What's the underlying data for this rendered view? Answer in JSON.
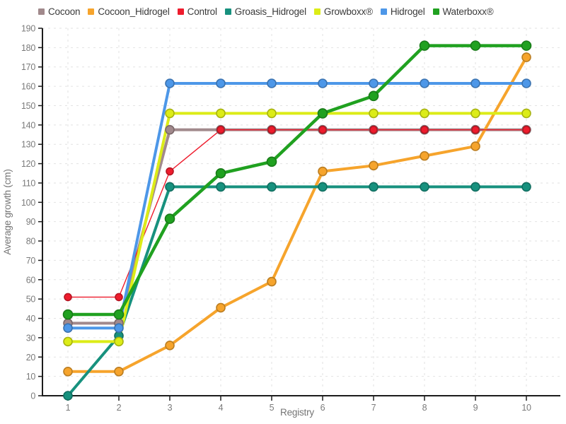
{
  "chart_data": {
    "type": "line",
    "title": "",
    "xlabel": "Registry",
    "ylabel": "Average growth (cm)",
    "x": [
      1,
      2,
      3,
      4,
      5,
      6,
      7,
      8,
      9,
      10
    ],
    "ylim": [
      0,
      190
    ],
    "y_step": 10,
    "y_ticks": [
      0,
      10,
      20,
      30,
      40,
      50,
      60,
      70,
      80,
      90,
      100,
      110,
      120,
      130,
      140,
      150,
      160,
      170,
      180,
      190
    ],
    "grid": true,
    "grid_style": "dashed",
    "legend_position": "top",
    "series": [
      {
        "name": "Cocoon",
        "color": "#a1898c",
        "line_width": 4,
        "marker_radius": 6,
        "values": [
          37.5,
          37.5,
          137.5,
          137.5,
          137.5,
          137.5,
          137.5,
          137.5,
          137.5,
          137.5
        ]
      },
      {
        "name": "Cocoon_Hidrogel",
        "color": "#f6a42c",
        "line_width": 4,
        "marker_radius": 6,
        "values": [
          12.5,
          12.5,
          26,
          45.5,
          59,
          116,
          119,
          124,
          129,
          175
        ]
      },
      {
        "name": "Control",
        "color": "#ee1c2d",
        "line_width": 1.4,
        "marker_radius": 5,
        "values": [
          51,
          51,
          116,
          137.5,
          137.5,
          137.5,
          137.5,
          137.5,
          137.5,
          137.5
        ]
      },
      {
        "name": "Groasis_Hidrogel",
        "color": "#17917e",
        "line_width": 4,
        "marker_radius": 6,
        "values": [
          0,
          31,
          108,
          108,
          108,
          108,
          108,
          108,
          108,
          108
        ]
      },
      {
        "name": "Growboxx®",
        "color": "#dcec17",
        "line_width": 4,
        "marker_radius": 6,
        "values": [
          28,
          28,
          146,
          146,
          146,
          146,
          146,
          146,
          146,
          146
        ]
      },
      {
        "name": "Hidrogel",
        "color": "#4d97e8",
        "line_width": 4,
        "marker_radius": 6,
        "values": [
          35,
          35,
          161.5,
          161.5,
          161.5,
          161.5,
          161.5,
          161.5,
          161.5,
          161.5
        ]
      },
      {
        "name": "Waterboxx®",
        "color": "#20a120",
        "line_width": 4.5,
        "marker_radius": 6.5,
        "values": [
          42,
          42,
          91.5,
          115,
          121,
          146,
          155,
          181,
          181,
          181
        ]
      }
    ],
    "colors": {
      "background": "#ffffff",
      "axis": "#1c1c1c",
      "gridline": "#e2e2e2",
      "tick_label": "#7b7b7b",
      "axis_title": "#757575",
      "legend_text": "#3a3a3a"
    }
  }
}
